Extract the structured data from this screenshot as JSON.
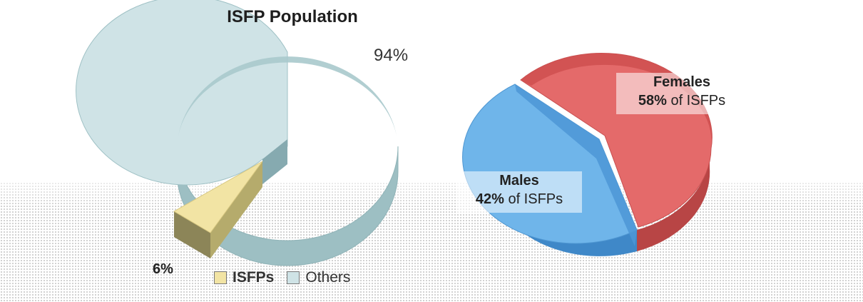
{
  "chart_data": [
    {
      "type": "pie",
      "title": "ISFP Population",
      "slices": [
        {
          "label": "ISFPs",
          "value": 6,
          "value_label": "6%",
          "color": "#f2e4a4"
        },
        {
          "label": "Others",
          "value": 94,
          "value_label": "94%",
          "color": "#cfe3e6"
        }
      ],
      "legend": {
        "position": "bottom",
        "entries": [
          "ISFPs",
          "Others"
        ]
      }
    },
    {
      "type": "pie",
      "title": "",
      "slices": [
        {
          "label": "Females",
          "value": 58,
          "value_text": "58%",
          "suffix": " of ISFPs",
          "color": "#e46a6a"
        },
        {
          "label": "Males",
          "value": 42,
          "value_text": "42%",
          "suffix": " of ISFPs",
          "color": "#6fb5ea"
        }
      ]
    }
  ]
}
